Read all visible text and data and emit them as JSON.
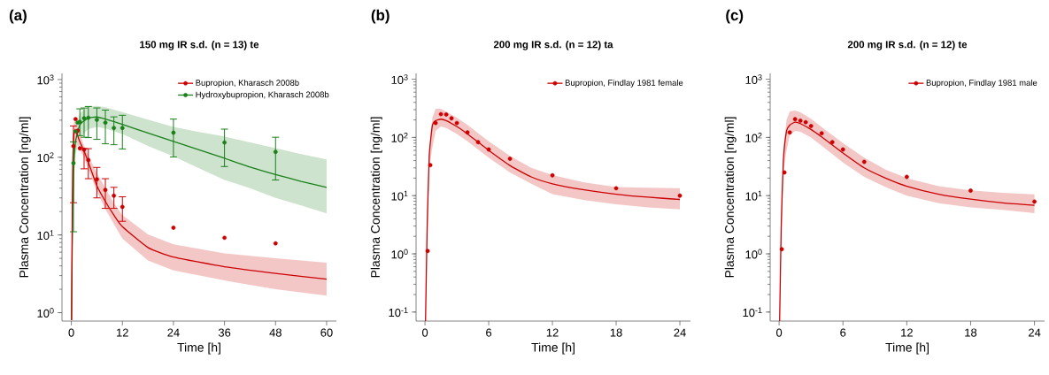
{
  "chart_data": [
    {
      "type": "scatter",
      "title": "150 mg IR s.d. (n = 13) te",
      "xlabel": "Time [h]",
      "ylabel": "Plasma Concentration [ng/ml]",
      "annotations": [
        "(a)"
      ],
      "log": "y",
      "legend": "top right",
      "xlim": [
        -2.2,
        62.3
      ],
      "xticks": [
        0,
        12,
        24,
        36,
        48,
        60
      ],
      "ylim": [
        0.78,
        1200
      ],
      "yticks": [
        {
          "value": 1,
          "label": "10$^{0}$"
        },
        {
          "value": 10,
          "label": "10$^{1}$"
        },
        {
          "value": 100,
          "label": "10$^{2}$"
        },
        {
          "value": 1000,
          "label": "10$^{3}$"
        }
      ],
      "series": [
        {
          "type": "line",
          "color": "#1a801a",
          "x": [
            0.05,
            0.3,
            0.6,
            1,
            2,
            4,
            6,
            8,
            12,
            18,
            24,
            30,
            36,
            42,
            48,
            54,
            60
          ],
          "values": [
            0.8,
            20,
            80,
            160,
            260,
            320,
            330,
            310,
            265,
            205,
            160,
            125,
            97,
            75,
            60,
            49,
            41
          ],
          "lower": [
            0.8,
            10,
            50,
            110,
            180,
            230,
            245,
            235,
            199,
            140,
            103,
            72,
            51,
            40,
            30,
            24,
            19
          ],
          "upper": [
            0.8,
            35,
            130,
            230,
            370,
            450,
            457,
            440,
            380,
            305,
            245,
            212,
            185,
            155,
            131,
            110,
            94
          ]
        },
        {
          "type": "line",
          "color": "#cc0000",
          "x": [
            0.05,
            0.3,
            0.6,
            1,
            2,
            3,
            4,
            6,
            8,
            10,
            12,
            18,
            24,
            36,
            48,
            60
          ],
          "values": [
            0.8,
            60,
            200,
            224,
            158,
            120,
            86,
            43,
            27,
            18,
            12.8,
            6.9,
            5.2,
            3.9,
            3.2,
            2.7
          ],
          "lower": [
            0.8,
            40,
            140,
            170,
            125,
            100,
            70,
            36,
            21.5,
            13.8,
            9,
            4.7,
            3.5,
            2.6,
            2.0,
            1.66
          ],
          "upper": [
            0.8,
            90,
            280,
            300,
            200,
            140,
            105,
            63,
            40,
            25.7,
            18,
            10.2,
            7.6,
            5.8,
            5.0,
            4.4
          ]
        },
        {
          "name": "Bupropion, Kharasch 2008b",
          "marker": "circle",
          "color": "#cc0000",
          "x": [
            0.5,
            1,
            1.5,
            2,
            3,
            4,
            6,
            8,
            10,
            12,
            24,
            36,
            48
          ],
          "values": [
            139,
            310,
            220,
            130,
            125,
            92,
            52,
            38,
            32,
            23,
            12.4,
            9.2,
            7.8
          ],
          "errors": [
            [
              26,
              253
            ],
            null,
            null,
            null,
            [
              71,
              129
            ],
            [
              53,
              129
            ],
            [
              30,
              74
            ],
            [
              22,
              53
            ],
            [
              22,
              41
            ],
            [
              15,
              31
            ],
            null,
            null,
            null
          ]
        },
        {
          "name": "Hydroxybupropion, Kharasch 2008b",
          "marker": "circle",
          "color": "#1a801a",
          "x": [
            0.5,
            1,
            1.5,
            2,
            3,
            4,
            6,
            8,
            10,
            12,
            24,
            36,
            48
          ],
          "values": [
            84,
            215,
            279,
            286,
            318,
            323,
            304,
            279,
            238,
            238,
            207,
            155,
            117
          ],
          "errors": [
            [
              11,
              158
            ],
            null,
            null,
            [
              190,
              420
            ],
            [
              181,
              431
            ],
            [
              179,
              450
            ],
            [
              170,
              431
            ],
            [
              149,
              405
            ],
            [
              145,
              331
            ],
            [
              128,
              347
            ],
            [
              101,
              310
            ],
            [
              76,
              230
            ],
            [
              51,
              181
            ]
          ]
        }
      ]
    },
    {
      "type": "scatter",
      "title": "200 mg IR s.d. (n = 12) ta",
      "xlabel": "Time [h]",
      "ylabel": "Plasma Concentration [ng/ml]",
      "annotations": [
        "(b)"
      ],
      "log": "y",
      "legend": "top right",
      "xlim": [
        -0.84,
        25.0
      ],
      "xticks": [
        0,
        6,
        12,
        18,
        24
      ],
      "ylim": [
        0.07,
        1260
      ],
      "yticks": [
        {
          "value": 0.1,
          "label": "10$^{-1}$"
        },
        {
          "value": 1,
          "label": "10$^{0}$"
        },
        {
          "value": 10,
          "label": "10$^{1}$"
        },
        {
          "value": 100,
          "label": "10$^{2}$"
        },
        {
          "value": 1000,
          "label": "10$^{3}$"
        }
      ],
      "series": [
        {
          "type": "line",
          "color": "#cc0000",
          "x": [
            0.05,
            0.2,
            0.4,
            0.7,
            1,
            1.5,
            2,
            3,
            4,
            6,
            8,
            10,
            12,
            15,
            18,
            21,
            24
          ],
          "values": [
            0.07,
            2.6,
            48,
            163,
            194,
            206,
            194,
            154,
            115,
            60,
            33,
            21,
            16,
            12.6,
            10.6,
            9.4,
            8.6
          ],
          "lower": [
            0.07,
            1.5,
            30,
            68,
            129,
            154,
            145,
            115,
            86,
            45,
            25,
            16,
            10.6,
            8.4,
            7.1,
            6.3,
            5.8
          ],
          "upper": [
            0.07,
            5,
            60,
            218,
            310,
            310,
            277,
            218,
            164,
            86,
            48,
            30,
            22.5,
            16.9,
            14,
            13.7,
            13.4
          ]
        },
        {
          "name": "Bupropion, Findlay 1981 female",
          "marker": "circle",
          "color": "#cc0000",
          "x": [
            0.25,
            0.5,
            1,
            1.5,
            2,
            2.5,
            3,
            4,
            5,
            6,
            8,
            12,
            18,
            24
          ],
          "values": [
            1.12,
            33.5,
            177,
            251,
            248,
            213,
            177,
            122,
            83,
            62,
            43,
            22.3,
            13.4,
            10.0
          ]
        }
      ]
    },
    {
      "type": "scatter",
      "title": "200 mg IR s.d. (n = 12) te",
      "xlabel": "Time [h]",
      "ylabel": "Plasma Concentration [ng/ml]",
      "annotations": [
        "(c)"
      ],
      "log": "y",
      "legend": "top right",
      "xlim": [
        -0.84,
        24.95
      ],
      "xticks": [
        0,
        6,
        12,
        18,
        24
      ],
      "ylim": [
        0.07,
        1260
      ],
      "yticks": [
        {
          "value": 0.1,
          "label": "10$^{-1}$"
        },
        {
          "value": 1,
          "label": "10$^{0}$"
        },
        {
          "value": 10,
          "label": "10$^{1}$"
        },
        {
          "value": 100,
          "label": "10$^{2}$"
        },
        {
          "value": 1000,
          "label": "10$^{3}$"
        }
      ],
      "series": [
        {
          "type": "line",
          "color": "#cc0000",
          "x": [
            0.05,
            0.2,
            0.4,
            0.7,
            1,
            1.5,
            2,
            3,
            4,
            6,
            8,
            10,
            12,
            15,
            18,
            21,
            24
          ],
          "values": [
            0.07,
            3,
            40,
            130,
            163,
            183,
            173,
            137,
            102,
            54,
            30,
            20,
            14.5,
            10.6,
            8.7,
            7.5,
            6.8
          ],
          "lower": [
            0.07,
            1.5,
            25,
            60,
            110,
            130,
            125,
            100,
            72,
            37,
            21,
            14,
            10,
            7.4,
            6.3,
            5.7,
            5.0
          ],
          "upper": [
            0.07,
            5,
            60,
            200,
            280,
            290,
            270,
            210,
            150,
            80,
            45,
            28,
            20,
            14.5,
            12.3,
            11.2,
            10.5
          ]
        },
        {
          "name": "Bupropion, Findlay 1981 male",
          "marker": "circle",
          "color": "#cc0000",
          "x": [
            0.25,
            0.5,
            1,
            1.5,
            2,
            2.5,
            3,
            4,
            5,
            6,
            8,
            12,
            18,
            24
          ],
          "values": [
            1.2,
            25,
            122,
            206,
            194,
            183,
            157,
            118,
            83,
            62,
            38,
            21,
            12.2,
            7.9
          ]
        }
      ]
    }
  ]
}
